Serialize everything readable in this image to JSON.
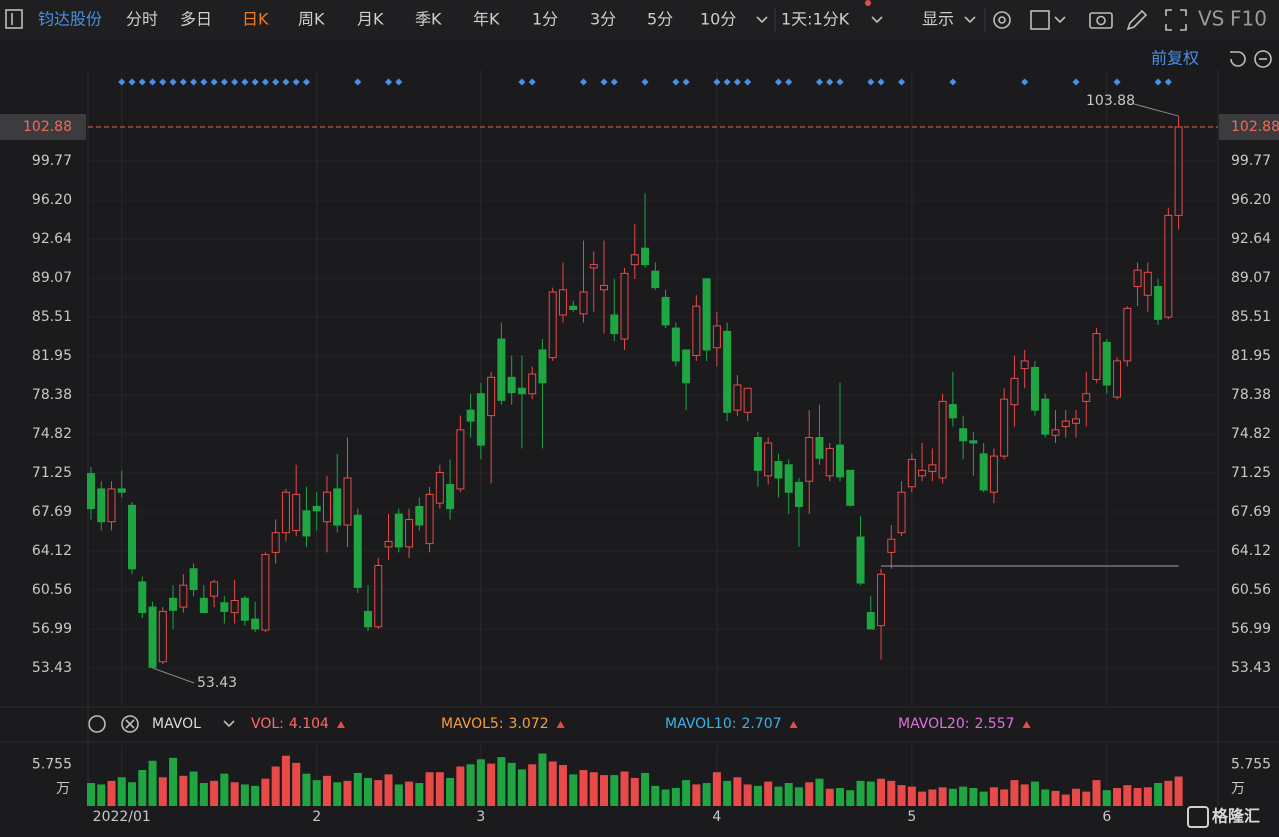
{
  "toolbar": {
    "stock": "钧达股份",
    "tabs": [
      "分时",
      "多日",
      "日K",
      "周K",
      "月K",
      "季K",
      "年K",
      "1分",
      "3分",
      "5分",
      "10分"
    ],
    "active_tab": 2,
    "active_color": "#f27b21",
    "stock_color": "#4a90e2",
    "period": "1天:1分K",
    "display": "显示",
    "vs": "VS",
    "f10": "F10",
    "adjust": "前复权"
  },
  "chart_data": {
    "type": "candlestick",
    "categories": [
      null,
      null,
      null,
      null,
      null,
      null,
      null,
      null,
      null,
      null,
      null,
      null,
      null,
      null,
      null,
      null,
      null,
      null,
      null,
      null,
      null,
      null,
      null,
      null,
      null,
      null,
      null,
      null,
      null,
      null,
      null,
      null,
      null,
      null,
      null,
      null,
      null,
      null,
      null,
      null,
      null,
      null,
      null,
      null,
      null,
      null,
      null,
      null,
      null,
      null,
      null,
      null,
      null,
      null,
      null,
      null,
      null,
      null,
      null,
      null,
      null,
      null,
      null,
      null,
      null,
      null,
      null,
      null,
      null,
      null,
      null,
      null,
      null,
      null,
      null,
      null,
      null,
      null,
      null,
      null,
      null,
      null,
      null,
      null,
      null,
      null,
      null,
      null,
      null,
      null,
      null,
      null,
      null,
      null,
      null,
      null,
      null,
      null,
      null,
      null,
      null,
      null,
      null,
      null,
      null,
      null,
      null
    ],
    "open": [
      71.2,
      69.8,
      66.8,
      69.8,
      68.3,
      61.3,
      59,
      54,
      59.8,
      59,
      62.5,
      59.8,
      60,
      59.4,
      58.5,
      59.8,
      57.9,
      56.9,
      64,
      65.8,
      66,
      67.8,
      68.2,
      66.8,
      69.8,
      66.5,
      67.4,
      58.6,
      57.2,
      64.5,
      67.5,
      64.5,
      68.2,
      64.8,
      68.5,
      70.2,
      69.8,
      77,
      78.5,
      76.5,
      83.5,
      80,
      79,
      78.5,
      82.5,
      81.8,
      85.7,
      86.5,
      85.8,
      90,
      88,
      85.7,
      83.5,
      90.3,
      91.8,
      89.7,
      87.3,
      84.5,
      82.5,
      82,
      89,
      82.7,
      84.2,
      77,
      76.8,
      74.5,
      71,
      72.3,
      72,
      70.4,
      70.5,
      74.5,
      71,
      73.8,
      71.5,
      65.4,
      58.5,
      57.3,
      64,
      65.8,
      70,
      71,
      71.4,
      70.8,
      77.5,
      75.3,
      74.2,
      73,
      69.5,
      72.8,
      77.5,
      80.8,
      80.9,
      78,
      74.7,
      75.5,
      75.8,
      77.8,
      79.8,
      83.2,
      78.2,
      81.5,
      88.3,
      87.5,
      88.3,
      85.5,
      94.8
    ],
    "high": [
      71.8,
      70.5,
      70.5,
      71.5,
      68.6,
      61.8,
      59.5,
      59,
      61,
      62,
      63,
      61,
      61.5,
      60,
      61.5,
      60,
      59.5,
      64,
      67,
      69.8,
      72,
      70,
      69.5,
      71,
      73,
      74.5,
      68,
      61,
      63.5,
      67.5,
      68,
      68,
      69,
      70,
      72,
      72.5,
      76.5,
      78.5,
      79.5,
      80.5,
      85,
      82,
      82,
      81,
      83.5,
      88.2,
      90.5,
      87,
      92.5,
      91.5,
      92.5,
      89,
      90,
      94,
      96.8,
      90.5,
      88,
      85,
      82.5,
      87.5,
      89,
      86,
      85,
      80.2,
      79,
      75,
      74.5,
      73,
      72.5,
      70.8,
      77,
      77.5,
      74,
      79.5,
      71.5,
      67.3,
      60,
      62.5,
      66.5,
      70.5,
      73,
      74,
      73.5,
      78.5,
      80.5,
      76.5,
      75,
      74,
      73.5,
      79,
      82,
      82.5,
      81.5,
      78.5,
      77,
      77,
      77,
      80.5,
      84.5,
      83.5,
      81.8,
      86.5,
      90.5,
      90.5,
      89,
      95.5,
      103.88
    ],
    "low": [
      67,
      66,
      66,
      69,
      62,
      58,
      53.43,
      53.8,
      57,
      58.5,
      60,
      58.5,
      59,
      57.5,
      57.5,
      57.3,
      56.7,
      56.7,
      63,
      65,
      65.5,
      64.5,
      66,
      64,
      65.8,
      64.5,
      60.3,
      56.8,
      57,
      63.3,
      64,
      63.5,
      66,
      64,
      68,
      67,
      69.5,
      74.5,
      72.5,
      70.3,
      77.5,
      77.5,
      73.5,
      78,
      73.5,
      81.5,
      85,
      86,
      85,
      86,
      84,
      83.3,
      82.5,
      89,
      90,
      88,
      84.5,
      81,
      77,
      81.5,
      81.5,
      81,
      76,
      76.5,
      76,
      70,
      70.2,
      69,
      67.5,
      64.5,
      67.5,
      72,
      70.5,
      70.5,
      68.2,
      61,
      57,
      54.2,
      62.5,
      65.5,
      69.5,
      70.5,
      70.5,
      70.3,
      75.5,
      72.5,
      71,
      69.5,
      68.5,
      72.5,
      75.5,
      79,
      76.5,
      74.5,
      74,
      74.5,
      74.5,
      75.5,
      79.5,
      78.5,
      78,
      81,
      86.5,
      86,
      84.8,
      85.3,
      93.5
    ],
    "close": [
      68,
      66.8,
      69.8,
      69.5,
      62.5,
      58.5,
      53.5,
      58.6,
      58.7,
      61,
      60.6,
      58.5,
      61.3,
      58.6,
      59.6,
      57.8,
      57,
      63.8,
      65.8,
      69.5,
      69.3,
      65.5,
      67.8,
      69.5,
      66.5,
      70.8,
      60.8,
      57.2,
      62.8,
      65,
      64.5,
      67,
      66.5,
      69.3,
      71.3,
      68,
      75.2,
      76,
      73.8,
      80,
      77.9,
      78.6,
      78.5,
      80.3,
      79.5,
      87.8,
      88,
      86.2,
      87.8,
      90.3,
      88.4,
      84,
      89.5,
      91.2,
      90.3,
      88.2,
      84.8,
      81.5,
      79.5,
      86.5,
      82.5,
      84.7,
      76.8,
      79.3,
      79,
      71.5,
      74,
      70.8,
      69.5,
      68.2,
      74.5,
      72.6,
      73.5,
      70.9,
      68.3,
      61.2,
      57,
      62,
      65.2,
      69.5,
      72.5,
      71.5,
      72,
      77.8,
      76.3,
      74.2,
      74,
      69.7,
      72.8,
      78,
      79.9,
      81.5,
      77,
      74.8,
      75.2,
      76,
      76.2,
      78.5,
      84,
      79.3,
      81.5,
      86.3,
      89.8,
      89.6,
      85.3,
      94.8,
      102.88
    ],
    "up_color": "#e84a4a",
    "down_color": "#1fa643",
    "xlim": [
      -0.29,
      109.84
    ],
    "xticks": [
      {
        "value": 3,
        "label": "2022/01"
      },
      {
        "value": 22,
        "label": "2"
      },
      {
        "value": 38,
        "label": "3"
      },
      {
        "value": 61,
        "label": "4"
      },
      {
        "value": 80,
        "label": "5"
      },
      {
        "value": 99,
        "label": "6"
      }
    ],
    "ylim": [
      50.05,
      108.09
    ],
    "yticks": [
      99.77,
      {
        "value": 96.2,
        "label": "96.20"
      },
      92.64,
      89.07,
      85.51,
      81.95,
      78.38,
      74.82,
      71.25,
      67.69,
      64.12,
      60.56,
      56.99,
      53.43
    ],
    "grid": true,
    "last_price": 102.88,
    "last_price_color": "#e8643c",
    "high_label": 103.88,
    "low_label": 53.43,
    "horizontal_line": {
      "value": 62.75,
      "from": 77,
      "to": 106,
      "color": "#5a5e6a"
    },
    "signals": [
      3,
      4,
      5,
      6,
      7,
      8,
      9,
      10,
      11,
      12,
      13,
      14,
      15,
      16,
      17,
      18,
      19,
      20,
      21,
      26,
      29,
      30,
      42,
      43,
      48,
      50,
      51,
      54,
      57,
      58,
      61,
      62,
      63,
      64,
      67,
      68,
      71,
      72,
      73,
      76,
      77,
      79,
      84,
      91,
      96,
      100,
      104,
      105
    ],
    "signal_color": "#4a8fe8",
    "volume": {
      "values": [
        3.2,
        3.0,
        3.5,
        4.0,
        3.3,
        5.0,
        6.3,
        4.0,
        6.7,
        4.2,
        4.8,
        3.2,
        3.5,
        4.5,
        3.3,
        3.0,
        2.8,
        3.8,
        5.5,
        7.0,
        6.0,
        4.5,
        3.6,
        4.2,
        3.3,
        3.5,
        4.6,
        3.9,
        3.6,
        4.4,
        3.0,
        3.4,
        3.2,
        4.7,
        4.7,
        3.9,
        5.5,
        5.8,
        6.5,
        5.9,
        6.8,
        6.0,
        5.1,
        5.8,
        7.3,
        6.2,
        5.7,
        4.4,
        5.0,
        4.7,
        4.3,
        4.3,
        4.8,
        3.9,
        4.6,
        2.8,
        2.3,
        2.5,
        3.6,
        3.0,
        3.2,
        4.7,
        3.5,
        4.0,
        3.0,
        2.8,
        3.4,
        2.7,
        3.2,
        2.6,
        3.3,
        3.8,
        2.4,
        2.5,
        2.2,
        3.5,
        3.4,
        3.8,
        3.5,
        2.9,
        2.7,
        2.0,
        2.3,
        2.6,
        2.4,
        2.7,
        2.5,
        2.0,
        2.6,
        2.3,
        3.6,
        3.0,
        3.4,
        2.3,
        2.1,
        1.6,
        2.4,
        2.0,
        3.6,
        2.2,
        2.5,
        2.9,
        2.5,
        2.6,
        3.2,
        3.5,
        4.104
      ],
      "ylim": [
        0,
        8.49
      ],
      "yticks": [
        5.755
      ],
      "unit": "万",
      "indicator": "MAVOL",
      "readouts": [
        {
          "label": "VOL:",
          "value": 4.104,
          "color": "#ff6b6b"
        },
        {
          "label": "MAVOL5:",
          "value": 3.072,
          "color": "#f5a03a"
        },
        {
          "label": "MAVOL10:",
          "value": 2.707,
          "color": "#3ab4e8"
        },
        {
          "label": "MAVOL20:",
          "value": 2.557,
          "color": "#e070e0"
        }
      ]
    }
  },
  "watermark": "格隆汇"
}
